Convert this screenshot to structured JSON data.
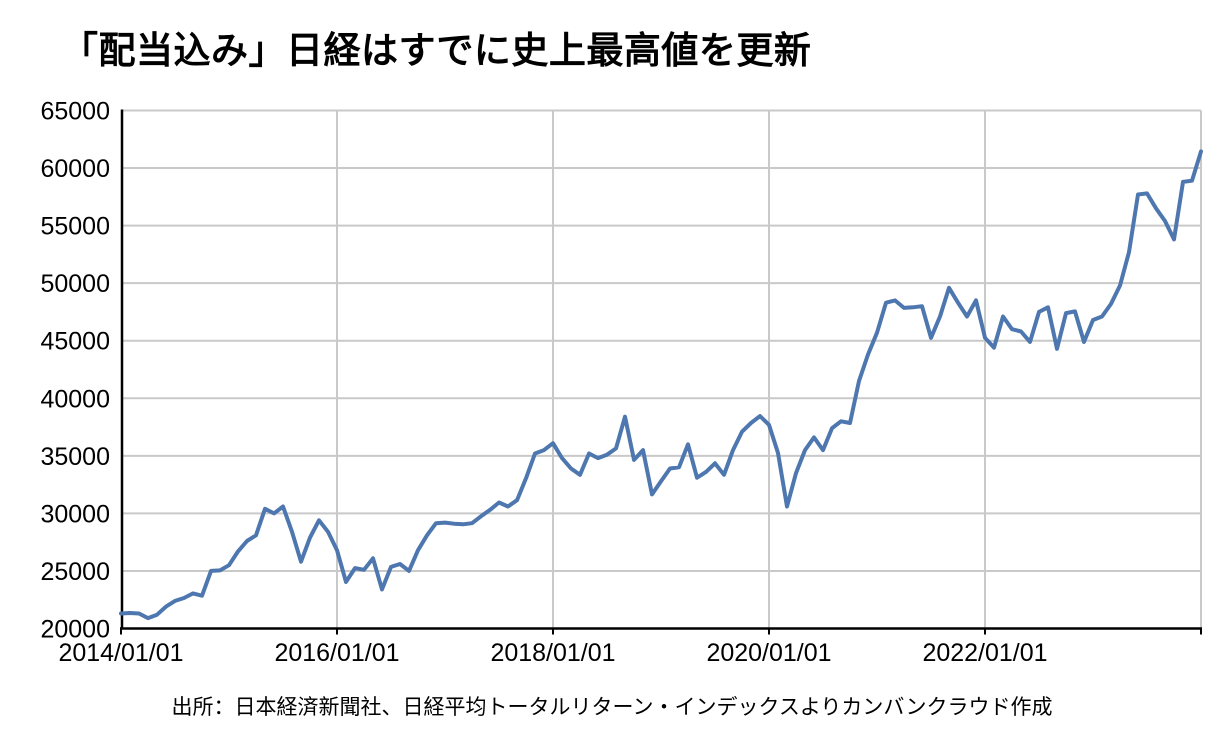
{
  "title": "「配当込み」日経はすでに史上最高値を更新",
  "source": "出所：日本経済新聞社、日経平均トータルリターン・インデックスよりカンバンクラウド作成",
  "chart_data": {
    "type": "line",
    "title": "「配当込み」日経はすでに史上最高値を更新",
    "series_name": "日経平均トータルリターン・インデックス",
    "x_interval": "monthly",
    "x_tick_labels": [
      "2014/01/01",
      "2016/01/01",
      "2018/01/01",
      "2020/01/01",
      "2022/01/01"
    ],
    "x_tick_months": [
      0,
      24,
      48,
      72,
      96
    ],
    "y_tick_labels": [
      "65000",
      "60000",
      "55000",
      "50000",
      "45000",
      "40000",
      "35000",
      "30000",
      "25000",
      "20000"
    ],
    "y_ticks": [
      65000,
      60000,
      55000,
      50000,
      45000,
      40000,
      35000,
      30000,
      25000,
      20000
    ],
    "ylim": [
      20000,
      65000
    ],
    "grid": true,
    "legend_position": "none",
    "line_color": "#4d77ae",
    "grid_color": "#c9c9c9",
    "axis_color": "#000000",
    "dates": [
      "2014/01",
      "2014/02",
      "2014/03",
      "2014/04",
      "2014/05",
      "2014/06",
      "2014/07",
      "2014/08",
      "2014/09",
      "2014/10",
      "2014/11",
      "2014/12",
      "2015/01",
      "2015/02",
      "2015/03",
      "2015/04",
      "2015/05",
      "2015/06",
      "2015/07",
      "2015/08",
      "2015/09",
      "2015/10",
      "2015/11",
      "2015/12",
      "2016/01",
      "2016/02",
      "2016/03",
      "2016/04",
      "2016/05",
      "2016/06",
      "2016/07",
      "2016/08",
      "2016/09",
      "2016/10",
      "2016/11",
      "2016/12",
      "2017/01",
      "2017/02",
      "2017/03",
      "2017/04",
      "2017/05",
      "2017/06",
      "2017/07",
      "2017/08",
      "2017/09",
      "2017/10",
      "2017/11",
      "2017/12",
      "2018/01",
      "2018/02",
      "2018/03",
      "2018/04",
      "2018/05",
      "2018/06",
      "2018/07",
      "2018/08",
      "2018/09",
      "2018/10",
      "2018/11",
      "2018/12",
      "2019/01",
      "2019/02",
      "2019/03",
      "2019/04",
      "2019/05",
      "2019/06",
      "2019/07",
      "2019/08",
      "2019/09",
      "2019/10",
      "2019/11",
      "2019/12",
      "2020/01",
      "2020/02",
      "2020/03",
      "2020/04",
      "2020/05",
      "2020/06",
      "2020/07",
      "2020/08",
      "2020/09",
      "2020/10",
      "2020/11",
      "2020/12",
      "2021/01",
      "2021/02",
      "2021/03",
      "2021/04",
      "2021/05",
      "2021/06",
      "2021/07",
      "2021/08",
      "2021/09",
      "2021/10",
      "2021/11",
      "2021/12",
      "2022/01",
      "2022/02",
      "2022/03",
      "2022/04",
      "2022/05",
      "2022/06",
      "2022/07",
      "2022/08",
      "2022/09",
      "2022/10",
      "2022/11",
      "2022/12",
      "2023/01",
      "2023/02",
      "2023/03",
      "2023/04",
      "2023/05",
      "2023/06",
      "2023/07",
      "2023/08",
      "2023/09",
      "2023/10",
      "2023/11",
      "2023/12",
      "2024/01"
    ],
    "values": [
      21300,
      21350,
      21300,
      20900,
      21200,
      21900,
      22400,
      22650,
      23050,
      22850,
      25000,
      25050,
      25500,
      26700,
      27600,
      28100,
      30400,
      30000,
      30600,
      28400,
      25800,
      27900,
      29400,
      28400,
      26800,
      24050,
      25250,
      25100,
      26100,
      23400,
      25350,
      25600,
      25000,
      26800,
      28100,
      29150,
      29200,
      29100,
      29050,
      29150,
      29750,
      30300,
      30950,
      30600,
      31150,
      33050,
      35200,
      35500,
      36100,
      34800,
      33900,
      33350,
      35200,
      34800,
      35100,
      35650,
      38400,
      34650,
      35500,
      31650,
      32800,
      33900,
      34000,
      36000,
      33100,
      33600,
      34350,
      33350,
      35500,
      37100,
      37850,
      38450,
      37700,
      35250,
      30600,
      33500,
      35500,
      36600,
      35500,
      37400,
      38000,
      37850,
      41500,
      43800,
      45700,
      48300,
      48500,
      47850,
      47900,
      48000,
      45250,
      47100,
      49600,
      48300,
      47100,
      48500,
      45250,
      44400,
      47100,
      46000,
      45800,
      44900,
      47500,
      47900,
      44300,
      47400,
      47550,
      44900,
      46800,
      47100,
      48200,
      49800,
      52700,
      57700,
      57800,
      56500,
      55400,
      53800,
      58800,
      58900,
      61450
    ]
  }
}
